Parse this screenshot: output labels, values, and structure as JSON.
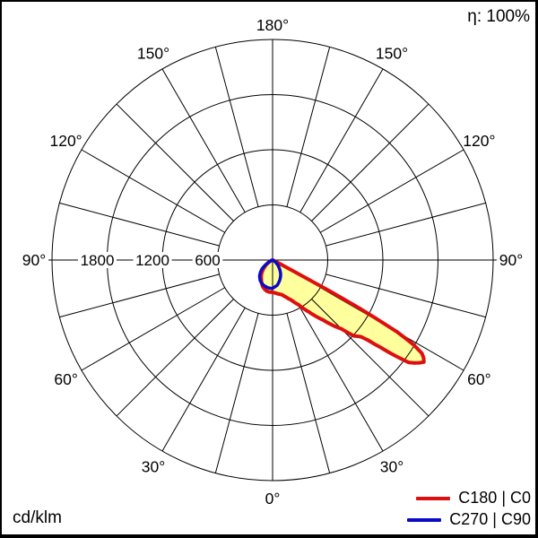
{
  "eta_label": "η: 100%",
  "unit_label": "cd/klm",
  "legend": [
    {
      "label": "C180 | C0",
      "color": "#dd0f0f"
    },
    {
      "label": "C270 | C90",
      "color": "#0a0ac8"
    }
  ],
  "colors": {
    "c0_curve": "#dd0f0f",
    "c90_curve": "#0a0ac8",
    "beam_fill": "#ffff9e",
    "grid": "#000000",
    "background": "#ffffff"
  },
  "chart_data": {
    "type": "polar",
    "subtype": "luminous-intensity-distribution",
    "unit": "cd/klm",
    "efficiency": "100%",
    "radial_ticks": [
      600,
      1200,
      1800
    ],
    "radial_max": 2400,
    "grid_spoke_step_deg": 15,
    "angle_label_step_deg": 30,
    "angle_labels": [
      {
        "deg": 0,
        "label": "0°",
        "sides": [
          "bottom"
        ]
      },
      {
        "deg": 30,
        "label": "30°",
        "sides": [
          "left",
          "right"
        ]
      },
      {
        "deg": 60,
        "label": "60°",
        "sides": [
          "left",
          "right"
        ]
      },
      {
        "deg": 90,
        "label": "90°",
        "sides": [
          "left",
          "right"
        ]
      },
      {
        "deg": 120,
        "label": "120°",
        "sides": [
          "left",
          "right"
        ]
      },
      {
        "deg": 150,
        "label": "150°",
        "sides": [
          "left",
          "right"
        ]
      },
      {
        "deg": 180,
        "label": "180°",
        "sides": [
          "top"
        ]
      }
    ],
    "series": [
      {
        "name": "C180 | C0",
        "color": "#dd0f0f",
        "filled": true,
        "fill_color": "#ffff9e",
        "right_half_plane": "C0",
        "left_half_plane": "C180",
        "right": [
          [
            0,
            350
          ],
          [
            5,
            360
          ],
          [
            10,
            375
          ],
          [
            15,
            390
          ],
          [
            20,
            430
          ],
          [
            25,
            480
          ],
          [
            30,
            560
          ],
          [
            35,
            690
          ],
          [
            40,
            850
          ],
          [
            43,
            980
          ],
          [
            45,
            1060
          ],
          [
            47,
            1210
          ],
          [
            49,
            1270
          ],
          [
            50,
            1360
          ],
          [
            51,
            1510
          ],
          [
            52,
            1690
          ],
          [
            53,
            1850
          ],
          [
            54,
            1905
          ],
          [
            55,
            1950
          ],
          [
            56,
            1985
          ],
          [
            57,
            1960
          ],
          [
            58,
            1915
          ],
          [
            59,
            1790
          ],
          [
            60,
            1560
          ],
          [
            60.5,
            1300
          ],
          [
            61,
            1080
          ],
          [
            61.4,
            800
          ],
          [
            61.7,
            500
          ],
          [
            62,
            290
          ],
          [
            62.5,
            140
          ],
          [
            63.5,
            60
          ],
          [
            65,
            20
          ],
          [
            70,
            5
          ],
          [
            75,
            0
          ],
          [
            180,
            0
          ]
        ],
        "left": [
          [
            0,
            350
          ],
          [
            5,
            350
          ],
          [
            10,
            345
          ],
          [
            15,
            330
          ],
          [
            20,
            310
          ],
          [
            25,
            280
          ],
          [
            30,
            245
          ],
          [
            35,
            215
          ],
          [
            40,
            185
          ],
          [
            45,
            145
          ],
          [
            50,
            110
          ],
          [
            55,
            75
          ],
          [
            60,
            45
          ],
          [
            65,
            25
          ],
          [
            70,
            10
          ],
          [
            75,
            0
          ],
          [
            180,
            0
          ]
        ]
      },
      {
        "name": "C270 | C90",
        "color": "#0a0ac8",
        "filled": false,
        "right_half_plane": "C90",
        "left_half_plane": "C270",
        "right": [
          [
            0,
            305
          ],
          [
            10,
            280
          ],
          [
            20,
            230
          ],
          [
            30,
            175
          ],
          [
            40,
            110
          ],
          [
            50,
            55
          ],
          [
            60,
            20
          ],
          [
            70,
            0
          ],
          [
            180,
            0
          ]
        ],
        "left": [
          [
            0,
            310
          ],
          [
            10,
            305
          ],
          [
            20,
            290
          ],
          [
            30,
            265
          ],
          [
            40,
            220
          ],
          [
            50,
            150
          ],
          [
            55,
            100
          ],
          [
            60,
            55
          ],
          [
            65,
            25
          ],
          [
            70,
            0
          ],
          [
            180,
            0
          ]
        ]
      }
    ]
  }
}
